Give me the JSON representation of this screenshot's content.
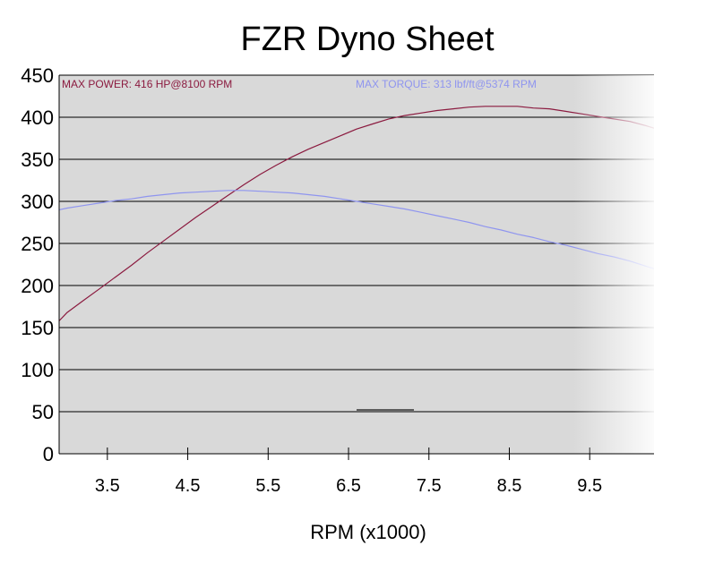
{
  "chart_data": {
    "type": "line",
    "title": "FZR Dyno Sheet",
    "xlabel": "RPM (x1000)",
    "ylabel": "",
    "xlim": [
      2.9,
      10.3
    ],
    "ylim": [
      0,
      450
    ],
    "yticks": [
      0,
      50,
      100,
      150,
      200,
      250,
      300,
      350,
      400,
      450
    ],
    "xticks": [
      3.5,
      4.5,
      5.5,
      6.5,
      7.5,
      8.5,
      9.5
    ],
    "xtick_labels": [
      "3.5",
      "4.5",
      "5.5",
      "6.5",
      "7.5",
      "8.5",
      "9.5"
    ],
    "grid": "horizontal",
    "annotations": {
      "power": "MAX POWER: 416 HP@8100 RPM",
      "torque": "MAX TORQUE: 313 lbf/ft@5374 RPM"
    },
    "series": [
      {
        "key": "power",
        "color": "#8b1a3f",
        "x": [
          2.9,
          3.0,
          3.2,
          3.4,
          3.6,
          3.8,
          4.0,
          4.2,
          4.4,
          4.6,
          4.8,
          5.0,
          5.2,
          5.4,
          5.6,
          5.8,
          6.0,
          6.2,
          6.4,
          6.6,
          6.8,
          7.0,
          7.2,
          7.4,
          7.6,
          7.8,
          8.0,
          8.2,
          8.4,
          8.6,
          8.8,
          9.0,
          9.2,
          9.4,
          9.6,
          9.8,
          10.0,
          10.2,
          10.3
        ],
        "values": [
          158,
          168,
          182,
          196,
          210,
          224,
          239,
          253,
          267,
          281,
          294,
          307,
          320,
          332,
          343,
          353,
          362,
          370,
          378,
          386,
          392,
          398,
          402,
          405,
          408,
          410,
          412,
          413,
          413,
          413,
          411,
          410,
          407,
          404,
          401,
          398,
          395,
          390,
          387
        ]
      },
      {
        "key": "torque",
        "color": "#8f95ef",
        "x": [
          2.9,
          3.0,
          3.2,
          3.4,
          3.6,
          3.8,
          4.0,
          4.2,
          4.4,
          4.6,
          4.8,
          5.0,
          5.2,
          5.4,
          5.6,
          5.8,
          6.0,
          6.2,
          6.4,
          6.6,
          6.8,
          7.0,
          7.2,
          7.4,
          7.6,
          7.8,
          8.0,
          8.2,
          8.4,
          8.6,
          8.8,
          9.0,
          9.2,
          9.4,
          9.6,
          9.8,
          10.0,
          10.2,
          10.3
        ],
        "values": [
          290,
          292,
          295,
          298,
          301,
          303,
          306,
          308,
          310,
          311,
          312,
          313,
          313,
          312,
          311,
          310,
          308,
          306,
          303,
          300,
          297,
          294,
          291,
          287,
          283,
          279,
          275,
          270,
          266,
          261,
          257,
          252,
          248,
          243,
          238,
          234,
          229,
          223,
          220
        ]
      }
    ]
  }
}
